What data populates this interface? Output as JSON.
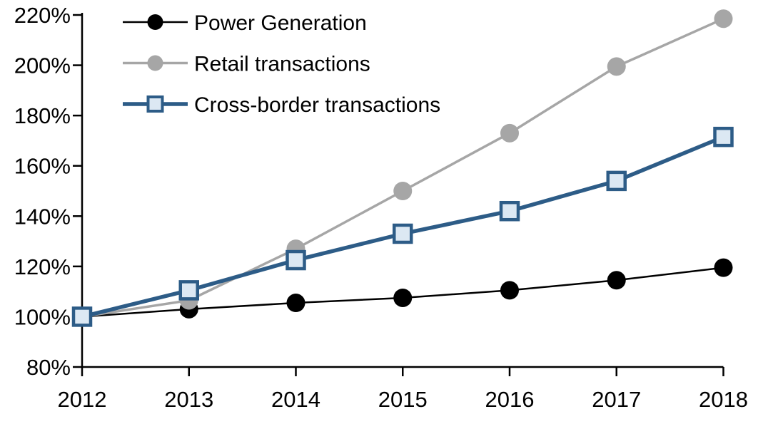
{
  "chart_data": {
    "type": "line",
    "title": "",
    "xlabel": "",
    "ylabel": "",
    "x": [
      2012,
      2013,
      2014,
      2015,
      2016,
      2017,
      2018
    ],
    "x_labels": [
      "2012",
      "2013",
      "2014",
      "2015",
      "2016",
      "2017",
      "2018"
    ],
    "y_tick_labels": [
      "80%",
      "100%",
      "120%",
      "140%",
      "160%",
      "180%",
      "200%",
      "220%"
    ],
    "ylim": [
      80,
      220
    ],
    "y_tick_step": 20,
    "grid": false,
    "legend_position": "top-left",
    "background_color": "#FFFFFF",
    "axis_color": "#000000",
    "series": [
      {
        "name": "Power Generation",
        "marker": "circle",
        "color": "#000000",
        "marker_fill": "#000000",
        "line_width": 2.5,
        "values": [
          100,
          103,
          105.5,
          107.5,
          110.5,
          114.5,
          119.5
        ]
      },
      {
        "name": "Retail transactions",
        "marker": "circle",
        "color": "#A6A6A6",
        "marker_fill": "#A6A6A6",
        "line_width": 3.5,
        "values": [
          100,
          106.5,
          127,
          150,
          173,
          199.5,
          218.5
        ]
      },
      {
        "name": "Cross-border transactions",
        "marker": "square",
        "color": "#2D5C87",
        "marker_fill": "#DCE8F3",
        "line_width": 5.5,
        "values": [
          100,
          110.5,
          122.5,
          133,
          142,
          154,
          171.5
        ]
      }
    ]
  }
}
